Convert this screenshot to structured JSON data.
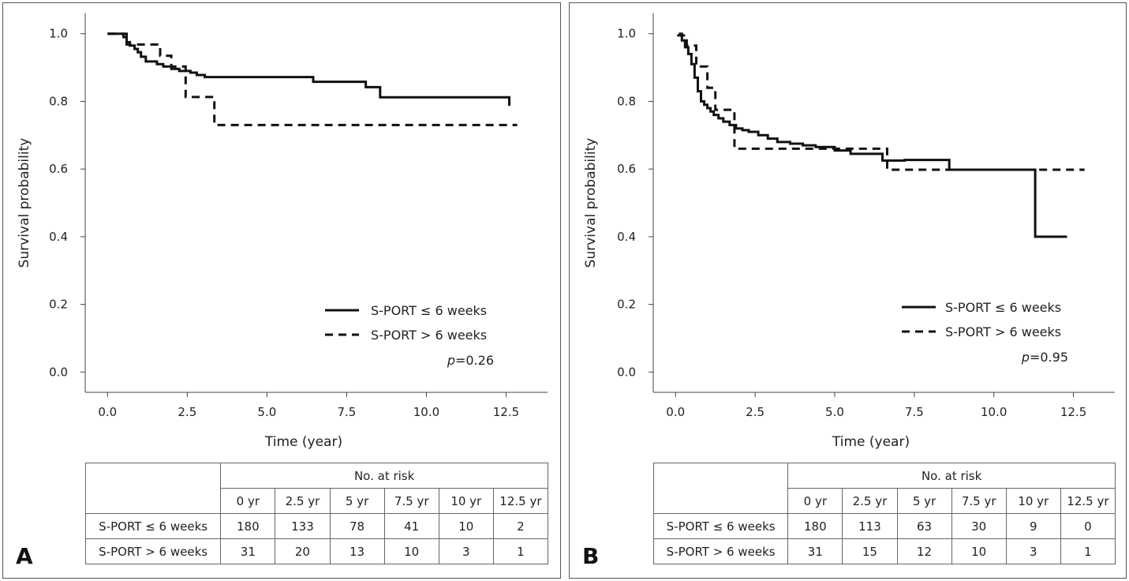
{
  "chart_data": [
    {
      "type": "line",
      "panel_label": "A",
      "xlabel": "Time (year)",
      "ylabel": "Survival probability",
      "xlim": [
        -0.7,
        13.8
      ],
      "ylim": [
        -0.06,
        1.06
      ],
      "x_ticks": [
        "0.0",
        "2.5",
        "5.0",
        "7.5",
        "10.0",
        "12.5"
      ],
      "y_ticks": [
        "0.0",
        "0.2",
        "0.4",
        "0.6",
        "0.8",
        "1.0"
      ],
      "legend_position": "lower-right",
      "p_value": "=0.26",
      "p_label": "p",
      "series": [
        {
          "name": "S-PORT ≤ 6 weeks",
          "style": "solid",
          "x": [
            0,
            0.5,
            0.6,
            0.7,
            0.85,
            0.95,
            1.05,
            1.2,
            1.55,
            1.75,
            2.0,
            2.25,
            2.6,
            2.8,
            3.05,
            6.45,
            8.1,
            8.55,
            12.6
          ],
          "y": [
            1.0,
            0.99,
            0.975,
            0.965,
            0.955,
            0.945,
            0.932,
            0.918,
            0.91,
            0.903,
            0.896,
            0.89,
            0.885,
            0.878,
            0.872,
            0.858,
            0.842,
            0.812,
            0.787
          ]
        },
        {
          "name": "S-PORT > 6 weeks",
          "style": "dashed",
          "x": [
            0,
            0.6,
            1.05,
            1.65,
            2.0,
            2.45,
            3.35,
            12.85
          ],
          "y": [
            1.0,
            0.968,
            0.968,
            0.935,
            0.903,
            0.813,
            0.73,
            0.73
          ]
        }
      ],
      "risk_table": {
        "header": "No. at risk",
        "times": [
          "0 yr",
          "2.5 yr",
          "5 yr",
          "7.5 yr",
          "10 yr",
          "12.5 yr"
        ],
        "rows": [
          {
            "label": "S-PORT ≤ 6 weeks",
            "values": [
              "180",
              "133",
              "78",
              "41",
              "10",
              "2"
            ]
          },
          {
            "label": "S-PORT > 6 weeks",
            "values": [
              "31",
              "20",
              "13",
              "10",
              "3",
              "1"
            ]
          }
        ]
      }
    },
    {
      "type": "line",
      "panel_label": "B",
      "xlabel": "Time (year)",
      "ylabel": "Survival probability",
      "xlim": [
        -0.7,
        13.8
      ],
      "ylim": [
        -0.06,
        1.06
      ],
      "x_ticks": [
        "0.0",
        "2.5",
        "5.0",
        "7.5",
        "10.0",
        "12.5"
      ],
      "y_ticks": [
        "0.0",
        "0.2",
        "0.4",
        "0.6",
        "0.8",
        "1.0"
      ],
      "legend_position": "lower-right",
      "p_value": "=0.95",
      "p_label": "p",
      "series": [
        {
          "name": "S-PORT ≤ 6 weeks",
          "style": "solid",
          "x": [
            0.1,
            0.2,
            0.3,
            0.4,
            0.5,
            0.6,
            0.7,
            0.8,
            0.9,
            1.0,
            1.1,
            1.2,
            1.35,
            1.5,
            1.7,
            1.9,
            2.1,
            2.3,
            2.6,
            2.9,
            3.2,
            3.6,
            4.0,
            4.4,
            5.0,
            5.5,
            6.5,
            7.2,
            8.6,
            11.3,
            12.3
          ],
          "y": [
            1.0,
            0.98,
            0.96,
            0.94,
            0.91,
            0.87,
            0.83,
            0.8,
            0.79,
            0.78,
            0.77,
            0.76,
            0.75,
            0.74,
            0.73,
            0.72,
            0.715,
            0.71,
            0.7,
            0.69,
            0.68,
            0.675,
            0.67,
            0.665,
            0.655,
            0.645,
            0.625,
            0.627,
            0.598,
            0.4,
            0.4
          ]
        },
        {
          "name": "S-PORT > 6 weeks",
          "style": "dashed",
          "x": [
            0.05,
            0.35,
            0.65,
            1.0,
            1.25,
            1.85,
            6.65,
            8.6,
            12.85
          ],
          "y": [
            0.995,
            0.965,
            0.903,
            0.84,
            0.775,
            0.66,
            0.598,
            0.598,
            0.598
          ]
        }
      ],
      "risk_table": {
        "header": "No. at risk",
        "times": [
          "0 yr",
          "2.5 yr",
          "5 yr",
          "7.5 yr",
          "10 yr",
          "12.5 yr"
        ],
        "rows": [
          {
            "label": "S-PORT ≤ 6 weeks",
            "values": [
              "180",
              "113",
              "63",
              "30",
              "9",
              "0"
            ]
          },
          {
            "label": "S-PORT > 6 weeks",
            "values": [
              "31",
              "15",
              "12",
              "10",
              "3",
              "1"
            ]
          }
        ]
      }
    }
  ]
}
